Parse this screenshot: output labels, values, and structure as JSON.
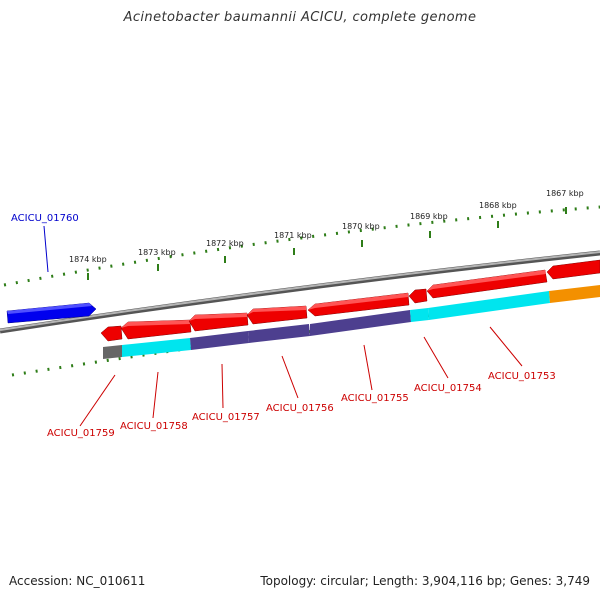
{
  "title": "Acinetobacter baumannii ACICU, complete genome",
  "footer": {
    "accession_label": "Accession:",
    "accession": "NC_010611",
    "topology_label": "Topology:",
    "topology": "circular",
    "length_label": "Length:",
    "length": "3,904,116 bp",
    "genes_label": "Genes:",
    "genes": "3,749"
  },
  "scale_ticks": [
    "1874 kbp",
    "1873 kbp",
    "1872 kbp",
    "1871 kbp",
    "1870 kbp",
    "1869 kbp",
    "1868 kbp",
    "1867 kbp"
  ],
  "gene_labels": {
    "top": [
      "ACICU_01760"
    ],
    "bottom": [
      "ACICU_01759",
      "ACICU_01758",
      "ACICU_01757",
      "ACICU_01756",
      "ACICU_01755",
      "ACICU_01754",
      "ACICU_01753"
    ]
  },
  "colors": {
    "forward_gene": "#0000ee",
    "reverse_gene": "#ee0000",
    "cyan_feature": "#00e5ee",
    "purple_feature": "#4d3f8f",
    "gray_feature": "#666666",
    "orange_feature": "#f39000",
    "backbone": "#808080",
    "tick": "#2e7d18",
    "label_forward": "#0000cc",
    "label_reverse": "#cc0000"
  }
}
